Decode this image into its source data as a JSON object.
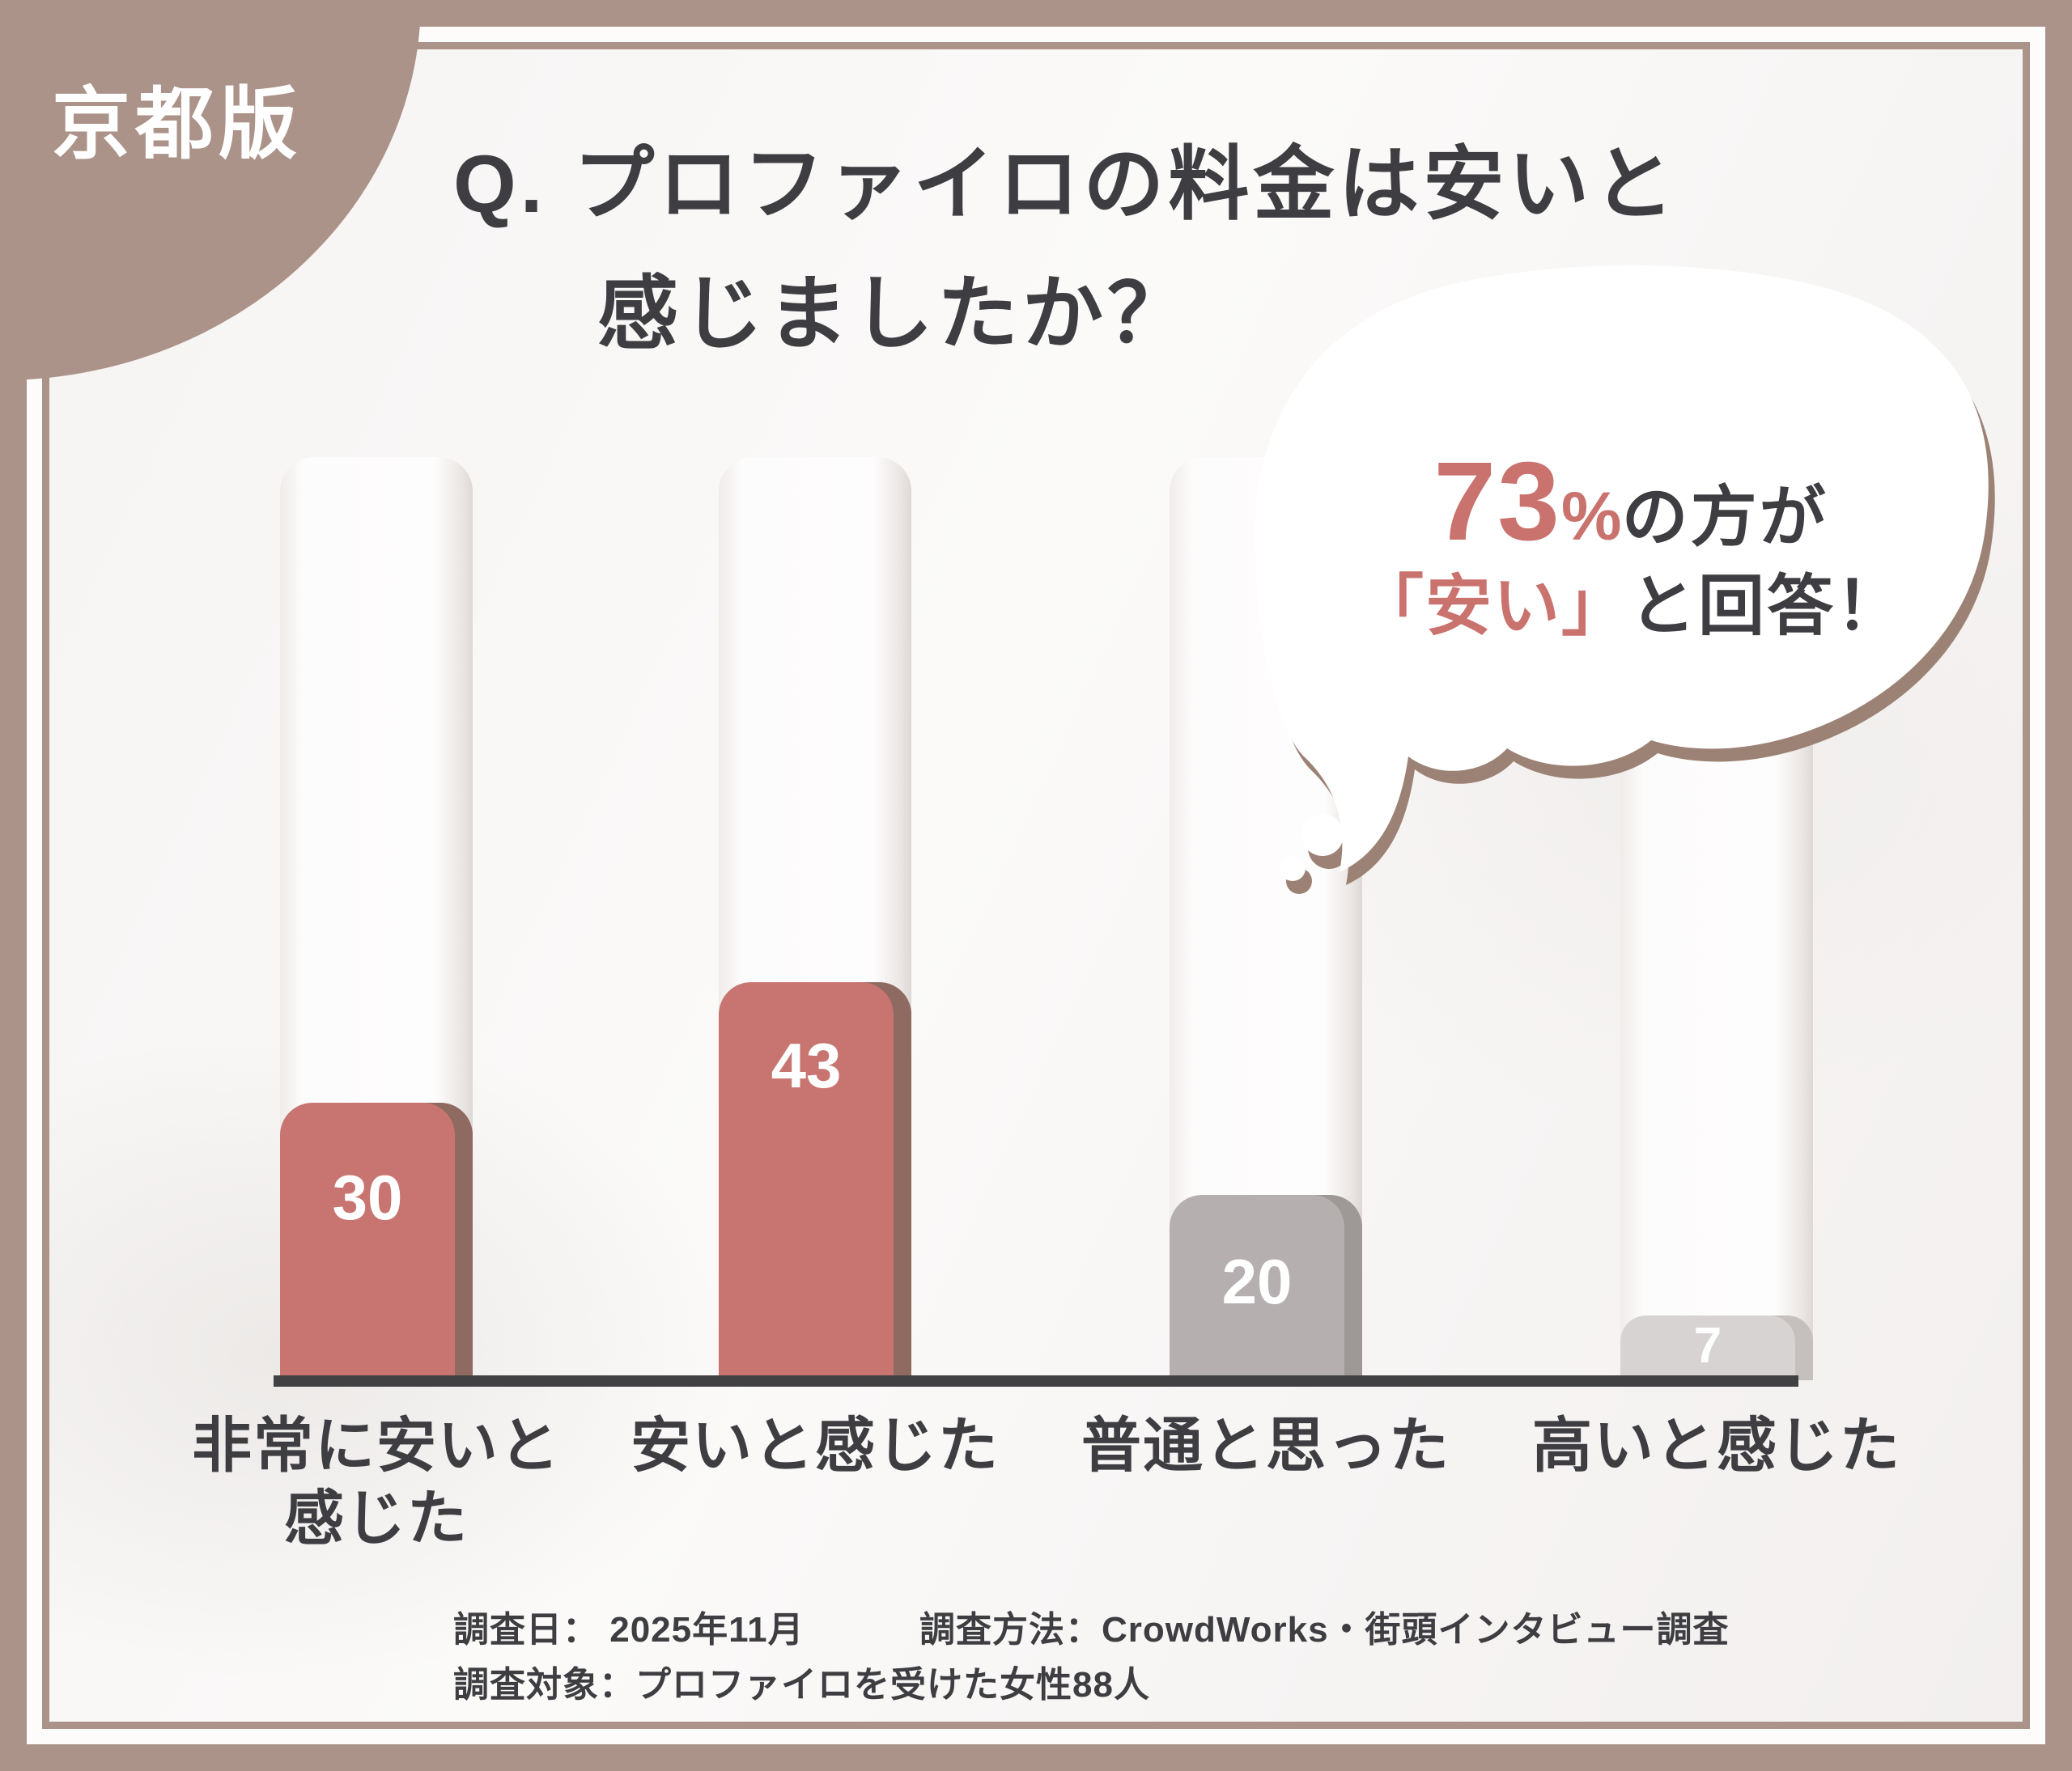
{
  "badge": {
    "label": "京都版"
  },
  "title": {
    "line1": "Q. プロファイロの料金は安いと",
    "line2": "感じましたか？"
  },
  "bubble": {
    "percent": "73",
    "percent_sign": "%",
    "suffix1": "の方が",
    "highlight": "「安い」",
    "suffix2": "と回答！"
  },
  "chart_data": {
    "type": "bar",
    "title": "Q. プロファイロの料金は安いと感じましたか？",
    "annotation": "73%の方が「安い」と回答！",
    "categories": [
      "非常に安いと感じた",
      "安いと感じた",
      "普通と思った",
      "高いと感じた"
    ],
    "category_label_lines": [
      [
        "非常に安いと",
        "感じた"
      ],
      [
        "安いと感じた"
      ],
      [
        "普通と思った"
      ],
      [
        "高いと感じた"
      ]
    ],
    "values": [
      30,
      43,
      20,
      7
    ],
    "ylim": [
      0,
      47
    ],
    "grid": false,
    "legend": "none",
    "bar_colors": [
      "#c87571",
      "#c87571",
      "#b5b0af",
      "#d7d3d2"
    ],
    "bar_edge_colors": [
      "#8f6a61",
      "#8f6a61",
      "#9e9896",
      "#c5c0be"
    ],
    "value_label_color": "#ffffff",
    "axis_color": "#414143"
  },
  "footer": {
    "date_label": "調査日：",
    "date_value": "2025年11月",
    "method": "調査方法：CrowdWorks・街頭インタビュー調査",
    "target": "調査対象：プロファイロを受けた女性88人"
  },
  "colors": {
    "frame_brown": "#ab9389",
    "accent_salmon": "#c9726e",
    "text_dark": "#3e3e42",
    "bubble_shadow": "#9c8275",
    "background": "#f8f6f5"
  }
}
